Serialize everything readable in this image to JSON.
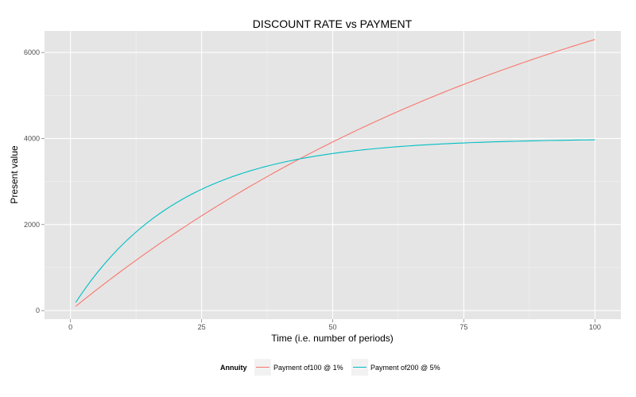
{
  "chart_data": {
    "type": "line",
    "title": "DISCOUNT RATE vs PAYMENT",
    "xlabel": "Time (i.e. number of periods)",
    "ylabel": "Present value",
    "xlim": [
      -4.95,
      104.95
    ],
    "ylim": [
      -200,
      6500
    ],
    "x_ticks": [
      0,
      25,
      50,
      75,
      100
    ],
    "y_ticks": [
      0,
      2000,
      4000,
      6000
    ],
    "grid": true,
    "legend": {
      "title": "Annuity",
      "placement": "bottom"
    },
    "series": [
      {
        "name": "Payment of100 @ 1%",
        "color": "#F8766D",
        "payment": 100,
        "rate": 0.01,
        "x": [
          1,
          5,
          10,
          15,
          20,
          25,
          30,
          35,
          40,
          45,
          50,
          55,
          60,
          65,
          70,
          75,
          80,
          85,
          90,
          95,
          100
        ],
        "y": [
          99,
          485,
          947,
          1387,
          1805,
          2202,
          2581,
          2941,
          3283,
          3609,
          3920,
          4214,
          4496,
          4763,
          5018,
          5260,
          5491,
          5710,
          5918,
          6117,
          6305
        ]
      },
      {
        "name": "Payment of200 @ 5%",
        "color": "#00BFC4",
        "payment": 200,
        "rate": 0.05,
        "x": [
          1,
          5,
          10,
          15,
          20,
          25,
          30,
          35,
          40,
          45,
          50,
          55,
          60,
          65,
          70,
          75,
          80,
          85,
          90,
          95,
          100
        ],
        "y": [
          190,
          866,
          1544,
          2076,
          2492,
          2819,
          3074,
          3275,
          3432,
          3555,
          3651,
          3727,
          3786,
          3832,
          3869,
          3897,
          3919,
          3936,
          3950,
          3961,
          3970
        ]
      }
    ]
  }
}
